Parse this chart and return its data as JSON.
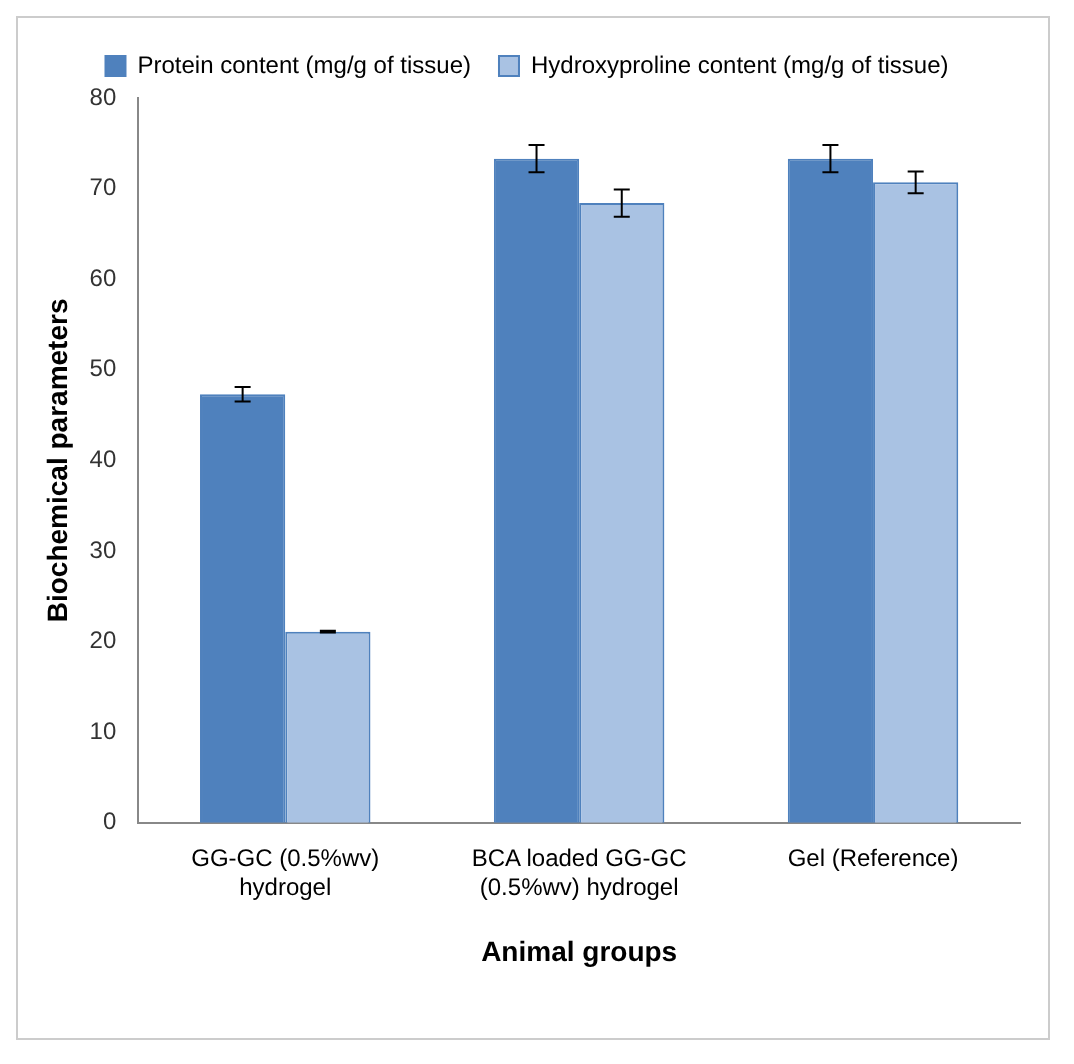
{
  "chart_data": {
    "type": "bar",
    "xlabel": "Animal groups",
    "ylabel": "Biochemical parameters",
    "categories": [
      "GG-GC (0.5%wv) hydrogel",
      "BCA loaded GG-GC (0.5%wv) hydrogel",
      "Gel (Reference)"
    ],
    "series": [
      {
        "name": "Protein content (mg/g of tissue)",
        "color": "#4f81bd",
        "values": [
          47.3,
          73.3,
          73.3
        ],
        "errors": [
          0.8,
          1.5,
          1.5
        ]
      },
      {
        "name": "Hydroxyproline content (mg/g of tissue)",
        "color": "#a9c2e3",
        "values": [
          21.1,
          68.4,
          70.7
        ],
        "errors": [
          0.1,
          1.5,
          1.2
        ]
      }
    ],
    "ylim": [
      0,
      80
    ],
    "yticks": [
      0,
      10,
      20,
      30,
      40,
      50,
      60,
      70,
      80
    ],
    "grid": false,
    "legend": "top"
  }
}
